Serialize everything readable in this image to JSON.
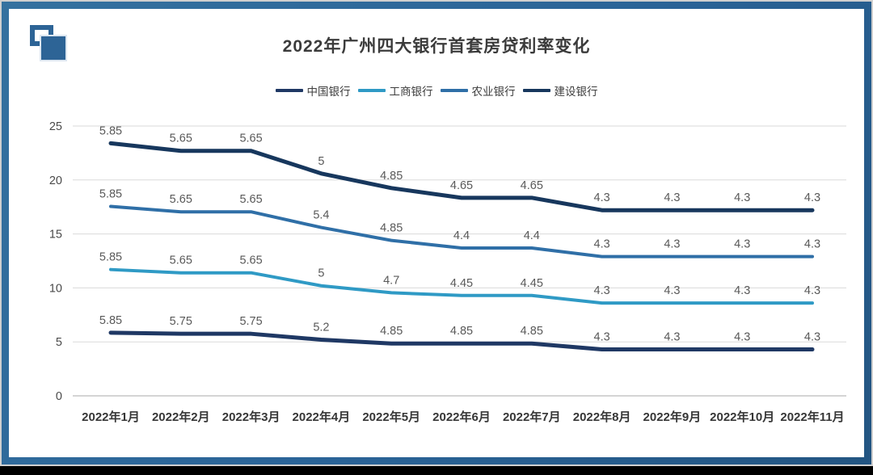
{
  "title": "2022年广州四大银行首套房贷利率变化",
  "brand": {
    "logo_color": "#2d6496",
    "frame_color": "#2a6397"
  },
  "chart_data": {
    "type": "line",
    "stacked": true,
    "title": "2022年广州四大银行首套房贷利率变化",
    "legend_position": "top",
    "grid": true,
    "categories": [
      "2022年1月",
      "2022年2月",
      "2022年3月",
      "2022年4月",
      "2022年5月",
      "2022年6月",
      "2022年7月",
      "2022年8月",
      "2022年9月",
      "2022年10月",
      "2022年11月"
    ],
    "series": [
      {
        "name": "中国银行",
        "color": "#1f3864",
        "values": [
          5.85,
          5.75,
          5.75,
          5.2,
          4.85,
          4.85,
          4.85,
          4.3,
          4.3,
          4.3,
          4.3
        ]
      },
      {
        "name": "工商银行",
        "color": "#2f9ac5",
        "values": [
          5.85,
          5.65,
          5.65,
          5.0,
          4.7,
          4.45,
          4.45,
          4.3,
          4.3,
          4.3,
          4.3
        ]
      },
      {
        "name": "农业银行",
        "color": "#2f6fa7",
        "values": [
          5.85,
          5.65,
          5.65,
          5.4,
          4.85,
          4.4,
          4.4,
          4.3,
          4.3,
          4.3,
          4.3
        ]
      },
      {
        "name": "建设银行",
        "color": "#17375d",
        "values": [
          5.85,
          5.65,
          5.65,
          5.0,
          4.85,
          4.65,
          4.65,
          4.3,
          4.3,
          4.3,
          4.3
        ]
      }
    ],
    "y_axis": {
      "min": 0,
      "max": 25,
      "step": 5,
      "ticks": [
        0,
        5,
        10,
        15,
        20,
        25
      ]
    },
    "note": "lines are cumulatively stacked; data labels show each bank's own rate (%)"
  }
}
